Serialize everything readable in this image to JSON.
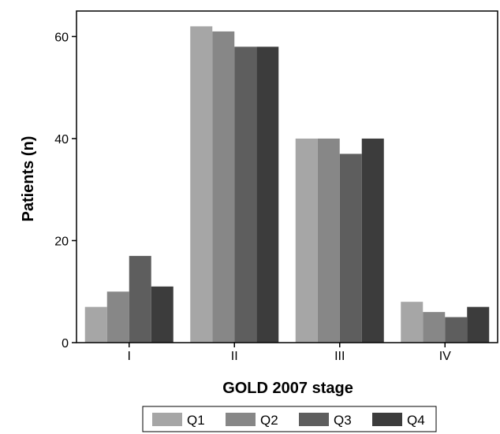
{
  "chart_data": {
    "type": "bar",
    "title": "",
    "xlabel": "GOLD 2007 stage",
    "ylabel": "Patients (n)",
    "categories": [
      "I",
      "II",
      "III",
      "IV"
    ],
    "series": [
      {
        "name": "Q1",
        "color": "#a6a6a6",
        "values": [
          7,
          62,
          40,
          8
        ]
      },
      {
        "name": "Q2",
        "color": "#878787",
        "values": [
          10,
          61,
          40,
          6
        ]
      },
      {
        "name": "Q3",
        "color": "#5e5e5e",
        "values": [
          17,
          58,
          37,
          5
        ]
      },
      {
        "name": "Q4",
        "color": "#3c3c3c",
        "values": [
          11,
          58,
          40,
          7
        ]
      }
    ],
    "ylim": [
      0,
      65
    ],
    "yticks": [
      0,
      20,
      40,
      60
    ],
    "grid": false,
    "legend": "bottom-center"
  }
}
